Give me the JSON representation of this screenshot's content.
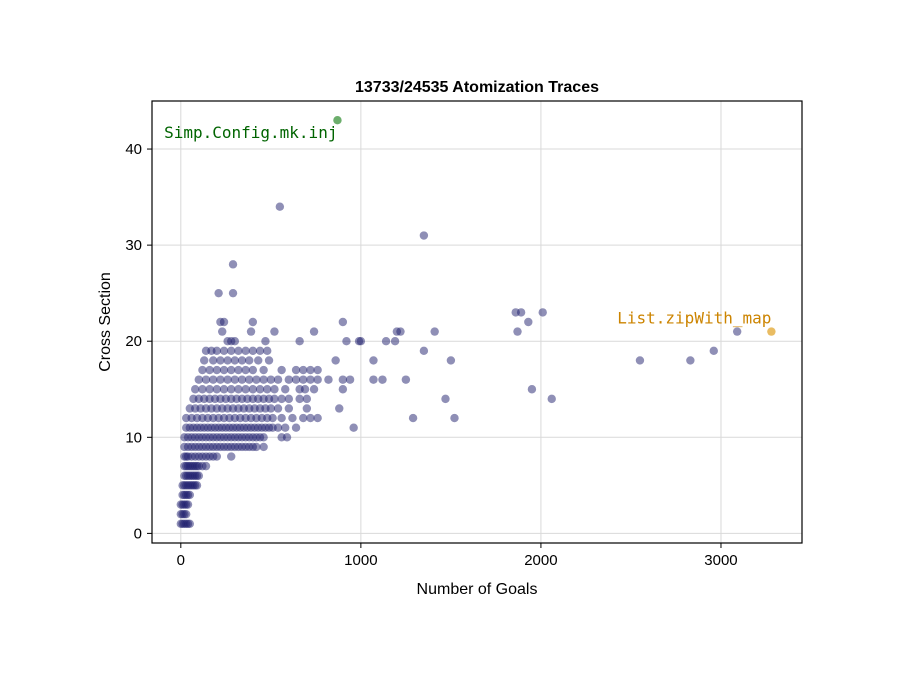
{
  "chart_data": {
    "type": "scatter",
    "title": "13733/24535 Atomization Traces",
    "xlabel": "Number of Goals",
    "ylabel": "Cross Section",
    "xlim": [
      -160,
      3450
    ],
    "ylim": [
      -1,
      45
    ],
    "xticks": [
      0,
      1000,
      2000,
      3000
    ],
    "yticks": [
      0,
      10,
      20,
      30,
      40
    ],
    "grid": true,
    "series": [
      {
        "color": "#1f1f6e",
        "opacity": 0.5,
        "points": [
          [
            0,
            1
          ],
          [
            10,
            1
          ],
          [
            20,
            1
          ],
          [
            30,
            1
          ],
          [
            40,
            1
          ],
          [
            50,
            1
          ],
          [
            0,
            2
          ],
          [
            10,
            2
          ],
          [
            20,
            2
          ],
          [
            30,
            2
          ],
          [
            0,
            3
          ],
          [
            10,
            3
          ],
          [
            20,
            3
          ],
          [
            30,
            3
          ],
          [
            40,
            3
          ],
          [
            10,
            4
          ],
          [
            20,
            4
          ],
          [
            30,
            4
          ],
          [
            40,
            4
          ],
          [
            50,
            4
          ],
          [
            10,
            5
          ],
          [
            20,
            5
          ],
          [
            30,
            5
          ],
          [
            40,
            5
          ],
          [
            50,
            5
          ],
          [
            60,
            5
          ],
          [
            70,
            5
          ],
          [
            80,
            5
          ],
          [
            90,
            5
          ],
          [
            20,
            6
          ],
          [
            30,
            6
          ],
          [
            40,
            6
          ],
          [
            50,
            6
          ],
          [
            60,
            6
          ],
          [
            70,
            6
          ],
          [
            80,
            6
          ],
          [
            90,
            6
          ],
          [
            100,
            6
          ],
          [
            20,
            7
          ],
          [
            30,
            7
          ],
          [
            40,
            7
          ],
          [
            50,
            7
          ],
          [
            60,
            7
          ],
          [
            70,
            7
          ],
          [
            80,
            7
          ],
          [
            90,
            7
          ],
          [
            100,
            7
          ],
          [
            120,
            7
          ],
          [
            140,
            7
          ],
          [
            20,
            8
          ],
          [
            30,
            8
          ],
          [
            40,
            8
          ],
          [
            60,
            8
          ],
          [
            80,
            8
          ],
          [
            100,
            8
          ],
          [
            120,
            8
          ],
          [
            140,
            8
          ],
          [
            160,
            8
          ],
          [
            180,
            8
          ],
          [
            200,
            8
          ],
          [
            280,
            8
          ],
          [
            20,
            9
          ],
          [
            40,
            9
          ],
          [
            60,
            9
          ],
          [
            80,
            9
          ],
          [
            100,
            9
          ],
          [
            120,
            9
          ],
          [
            140,
            9
          ],
          [
            160,
            9
          ],
          [
            180,
            9
          ],
          [
            200,
            9
          ],
          [
            220,
            9
          ],
          [
            240,
            9
          ],
          [
            260,
            9
          ],
          [
            280,
            9
          ],
          [
            300,
            9
          ],
          [
            320,
            9
          ],
          [
            340,
            9
          ],
          [
            360,
            9
          ],
          [
            380,
            9
          ],
          [
            400,
            9
          ],
          [
            420,
            9
          ],
          [
            460,
            9
          ],
          [
            20,
            10
          ],
          [
            40,
            10
          ],
          [
            60,
            10
          ],
          [
            80,
            10
          ],
          [
            100,
            10
          ],
          [
            120,
            10
          ],
          [
            140,
            10
          ],
          [
            160,
            10
          ],
          [
            180,
            10
          ],
          [
            200,
            10
          ],
          [
            220,
            10
          ],
          [
            240,
            10
          ],
          [
            260,
            10
          ],
          [
            280,
            10
          ],
          [
            300,
            10
          ],
          [
            320,
            10
          ],
          [
            340,
            10
          ],
          [
            360,
            10
          ],
          [
            380,
            10
          ],
          [
            400,
            10
          ],
          [
            420,
            10
          ],
          [
            440,
            10
          ],
          [
            460,
            10
          ],
          [
            560,
            10
          ],
          [
            590,
            10
          ],
          [
            30,
            11
          ],
          [
            50,
            11
          ],
          [
            70,
            11
          ],
          [
            90,
            11
          ],
          [
            110,
            11
          ],
          [
            130,
            11
          ],
          [
            150,
            11
          ],
          [
            170,
            11
          ],
          [
            190,
            11
          ],
          [
            210,
            11
          ],
          [
            230,
            11
          ],
          [
            250,
            11
          ],
          [
            270,
            11
          ],
          [
            290,
            11
          ],
          [
            310,
            11
          ],
          [
            330,
            11
          ],
          [
            350,
            11
          ],
          [
            370,
            11
          ],
          [
            390,
            11
          ],
          [
            410,
            11
          ],
          [
            430,
            11
          ],
          [
            450,
            11
          ],
          [
            470,
            11
          ],
          [
            490,
            11
          ],
          [
            510,
            11
          ],
          [
            540,
            11
          ],
          [
            580,
            11
          ],
          [
            640,
            11
          ],
          [
            960,
            11
          ],
          [
            30,
            12
          ],
          [
            60,
            12
          ],
          [
            90,
            12
          ],
          [
            120,
            12
          ],
          [
            150,
            12
          ],
          [
            180,
            12
          ],
          [
            210,
            12
          ],
          [
            240,
            12
          ],
          [
            270,
            12
          ],
          [
            300,
            12
          ],
          [
            330,
            12
          ],
          [
            360,
            12
          ],
          [
            390,
            12
          ],
          [
            420,
            12
          ],
          [
            450,
            12
          ],
          [
            480,
            12
          ],
          [
            510,
            12
          ],
          [
            560,
            12
          ],
          [
            620,
            12
          ],
          [
            680,
            12
          ],
          [
            720,
            12
          ],
          [
            760,
            12
          ],
          [
            1290,
            12
          ],
          [
            1520,
            12
          ],
          [
            50,
            13
          ],
          [
            80,
            13
          ],
          [
            110,
            13
          ],
          [
            140,
            13
          ],
          [
            170,
            13
          ],
          [
            200,
            13
          ],
          [
            230,
            13
          ],
          [
            260,
            13
          ],
          [
            290,
            13
          ],
          [
            320,
            13
          ],
          [
            350,
            13
          ],
          [
            380,
            13
          ],
          [
            410,
            13
          ],
          [
            440,
            13
          ],
          [
            470,
            13
          ],
          [
            500,
            13
          ],
          [
            540,
            13
          ],
          [
            600,
            13
          ],
          [
            700,
            13
          ],
          [
            880,
            13
          ],
          [
            70,
            14
          ],
          [
            100,
            14
          ],
          [
            130,
            14
          ],
          [
            160,
            14
          ],
          [
            190,
            14
          ],
          [
            220,
            14
          ],
          [
            250,
            14
          ],
          [
            280,
            14
          ],
          [
            310,
            14
          ],
          [
            340,
            14
          ],
          [
            370,
            14
          ],
          [
            400,
            14
          ],
          [
            430,
            14
          ],
          [
            460,
            14
          ],
          [
            490,
            14
          ],
          [
            520,
            14
          ],
          [
            560,
            14
          ],
          [
            600,
            14
          ],
          [
            660,
            14
          ],
          [
            700,
            14
          ],
          [
            1470,
            14
          ],
          [
            2060,
            14
          ],
          [
            80,
            15
          ],
          [
            120,
            15
          ],
          [
            160,
            15
          ],
          [
            200,
            15
          ],
          [
            240,
            15
          ],
          [
            280,
            15
          ],
          [
            320,
            15
          ],
          [
            360,
            15
          ],
          [
            400,
            15
          ],
          [
            440,
            15
          ],
          [
            480,
            15
          ],
          [
            520,
            15
          ],
          [
            580,
            15
          ],
          [
            660,
            15
          ],
          [
            690,
            15
          ],
          [
            740,
            15
          ],
          [
            900,
            15
          ],
          [
            1950,
            15
          ],
          [
            100,
            16
          ],
          [
            140,
            16
          ],
          [
            180,
            16
          ],
          [
            220,
            16
          ],
          [
            260,
            16
          ],
          [
            300,
            16
          ],
          [
            340,
            16
          ],
          [
            380,
            16
          ],
          [
            420,
            16
          ],
          [
            460,
            16
          ],
          [
            500,
            16
          ],
          [
            540,
            16
          ],
          [
            600,
            16
          ],
          [
            640,
            16
          ],
          [
            680,
            16
          ],
          [
            720,
            16
          ],
          [
            760,
            16
          ],
          [
            820,
            16
          ],
          [
            900,
            16
          ],
          [
            940,
            16
          ],
          [
            1070,
            16
          ],
          [
            1120,
            16
          ],
          [
            1250,
            16
          ],
          [
            120,
            17
          ],
          [
            160,
            17
          ],
          [
            200,
            17
          ],
          [
            240,
            17
          ],
          [
            280,
            17
          ],
          [
            320,
            17
          ],
          [
            360,
            17
          ],
          [
            400,
            17
          ],
          [
            460,
            17
          ],
          [
            560,
            17
          ],
          [
            640,
            17
          ],
          [
            680,
            17
          ],
          [
            720,
            17
          ],
          [
            760,
            17
          ],
          [
            130,
            18
          ],
          [
            180,
            18
          ],
          [
            220,
            18
          ],
          [
            260,
            18
          ],
          [
            300,
            18
          ],
          [
            340,
            18
          ],
          [
            380,
            18
          ],
          [
            430,
            18
          ],
          [
            490,
            18
          ],
          [
            860,
            18
          ],
          [
            1070,
            18
          ],
          [
            1500,
            18
          ],
          [
            2550,
            18
          ],
          [
            2830,
            18
          ],
          [
            140,
            19
          ],
          [
            170,
            19
          ],
          [
            200,
            19
          ],
          [
            240,
            19
          ],
          [
            280,
            19
          ],
          [
            320,
            19
          ],
          [
            360,
            19
          ],
          [
            400,
            19
          ],
          [
            440,
            19
          ],
          [
            480,
            19
          ],
          [
            1350,
            19
          ],
          [
            2960,
            19
          ],
          [
            260,
            20
          ],
          [
            280,
            20
          ],
          [
            300,
            20
          ],
          [
            470,
            20
          ],
          [
            660,
            20
          ],
          [
            920,
            20
          ],
          [
            990,
            20
          ],
          [
            1000,
            20
          ],
          [
            1140,
            20
          ],
          [
            1190,
            20
          ],
          [
            230,
            21
          ],
          [
            390,
            21
          ],
          [
            520,
            21
          ],
          [
            740,
            21
          ],
          [
            1200,
            21
          ],
          [
            1220,
            21
          ],
          [
            1410,
            21
          ],
          [
            1870,
            21
          ],
          [
            3090,
            21
          ],
          [
            220,
            22
          ],
          [
            240,
            22
          ],
          [
            400,
            22
          ],
          [
            900,
            22
          ],
          [
            1930,
            22
          ],
          [
            1860,
            23
          ],
          [
            1890,
            23
          ],
          [
            2010,
            23
          ],
          [
            210,
            25
          ],
          [
            290,
            25
          ],
          [
            290,
            28
          ],
          [
            1350,
            31
          ],
          [
            550,
            34
          ]
        ]
      }
    ],
    "highlights": [
      {
        "x": 870,
        "y": 43,
        "label": "Simp.Config.mk.inj",
        "color": "#2e8b2e",
        "text_color": "#006400"
      },
      {
        "x": 3280,
        "y": 21,
        "label": "List.zipWith_map",
        "color": "#e0a020",
        "text_color": "#cc8400"
      }
    ]
  }
}
